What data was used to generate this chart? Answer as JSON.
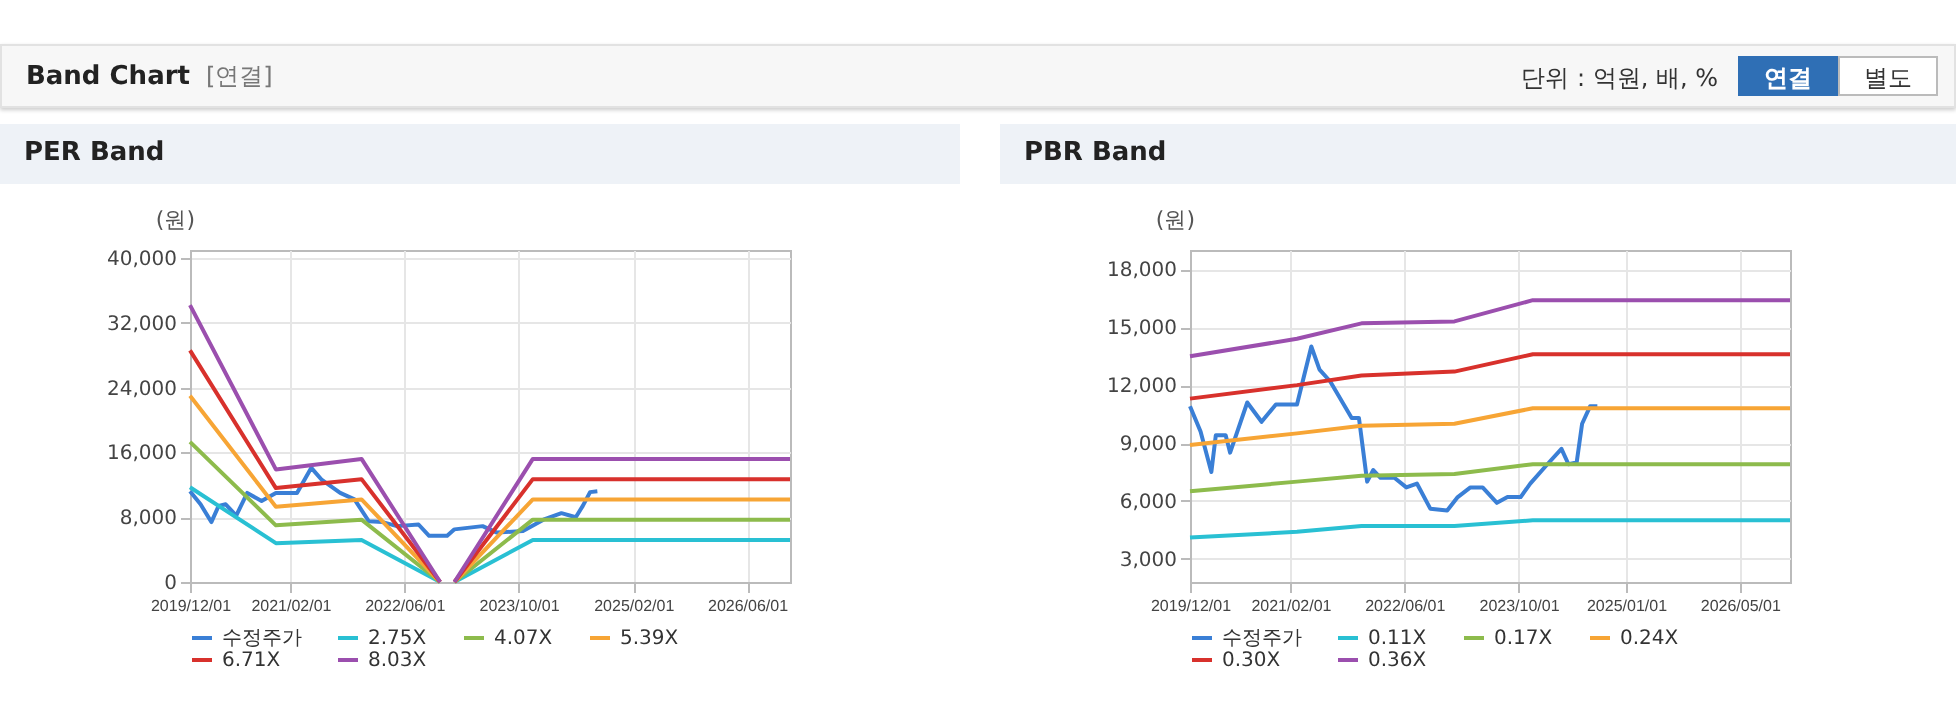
{
  "chart_data": [
    {
      "type": "other",
      "title": "Band Chart",
      "annotations": [
        "[연결]",
        "단위 : 억원, 배, %",
        "연결",
        "별도"
      ]
    },
    {
      "type": "line",
      "title": "PER Band",
      "ylabel": "(원)",
      "xlim": [
        "2019-12-01",
        "2026-12-01"
      ],
      "ylim": [
        0,
        41000
      ],
      "xticks": [
        {
          "value": "2019-12-01",
          "label": "2019/12/01"
        },
        {
          "value": "2021-02-01",
          "label": "2021/02/01"
        },
        {
          "value": "2022-06-01",
          "label": "2022/06/01"
        },
        {
          "value": "2023-10-01",
          "label": "2023/10/01"
        },
        {
          "value": "2025-02-01",
          "label": "2025/02/01"
        },
        {
          "value": "2026-06-01",
          "label": "2026/06/01"
        }
      ],
      "yticks": [
        0,
        {
          "value": 8000,
          "label": "8,000"
        },
        {
          "value": 16000,
          "label": "16,000"
        },
        {
          "value": 24000,
          "label": "24,000"
        },
        {
          "value": 32000,
          "label": "32,000"
        },
        {
          "value": 40000,
          "label": "40,000"
        }
      ],
      "grid": true,
      "legend": "bottom",
      "marker": "none",
      "line_style": "solid",
      "x": [
        "2019-12-01",
        "2020-12-01",
        "2021-12-01",
        "2022-11-01",
        "2022-12-01",
        "2023-01-01",
        "2023-12-01",
        "2026-12-01"
      ],
      "series": [
        {
          "name": "수정주가",
          "color": "#3a7fd6",
          "x": [
            "2019-12-01",
            "2020-01-15",
            "2020-03-01",
            "2020-04-01",
            "2020-05-01",
            "2020-06-15",
            "2020-08-01",
            "2020-10-01",
            "2020-12-01",
            "2021-03-01",
            "2021-05-01",
            "2021-06-15",
            "2021-09-01",
            "2021-11-01",
            "2022-01-01",
            "2022-03-01",
            "2022-05-01",
            "2022-08-01",
            "2022-09-15",
            "2022-12-01",
            "2023-01-01",
            "2023-05-01",
            "2023-07-01",
            "2023-10-20",
            "2024-01-15",
            "2024-04-01",
            "2024-06-01",
            "2024-07-01",
            "2024-08-01",
            "2024-09-01"
          ],
          "values": [
            11200,
            9600,
            7400,
            9400,
            9600,
            8200,
            11000,
            10000,
            11000,
            11000,
            14100,
            12600,
            11000,
            10200,
            7500,
            7400,
            6900,
            7100,
            5700,
            5700,
            6500,
            6900,
            6100,
            6300,
            7700,
            8500,
            8000,
            9400,
            11100,
            11200
          ]
        },
        {
          "name": "2.75X",
          "color": "#29c0d3",
          "values": [
            11700,
            4800,
            5200,
            0,
            null,
            0,
            5200,
            5200
          ]
        },
        {
          "name": "4.07X",
          "color": "#8dbb4c",
          "values": [
            17300,
            7000,
            7700,
            0,
            null,
            0,
            7700,
            7700
          ]
        },
        {
          "name": "5.39X",
          "color": "#f7a535",
          "values": [
            23000,
            9300,
            10200,
            0,
            null,
            0,
            10200,
            10200
          ]
        },
        {
          "name": "6.71X",
          "color": "#d8312c",
          "values": [
            28600,
            11600,
            12700,
            0,
            null,
            0,
            12700,
            12700
          ]
        },
        {
          "name": "8.03X",
          "color": "#9b4fae",
          "values": [
            34200,
            13900,
            15200,
            0,
            null,
            0,
            15200,
            15200
          ]
        }
      ]
    },
    {
      "type": "line",
      "title": "PBR Band",
      "ylabel": "(원)",
      "xlim": [
        "2019-12-01",
        "2026-12-01"
      ],
      "ylim": [
        1800,
        19000
      ],
      "xticks": [
        {
          "value": "2019-12-01",
          "label": "2019/12/01"
        },
        {
          "value": "2021-02-01",
          "label": "2021/02/01"
        },
        {
          "value": "2022-06-01",
          "label": "2022/06/01"
        },
        {
          "value": "2023-10-01",
          "label": "2023/10/01"
        },
        {
          "value": "2025-01-01",
          "label": "2025/01/01"
        },
        {
          "value": "2026-05-01",
          "label": "2026/05/01"
        }
      ],
      "yticks": [
        {
          "value": 3000,
          "label": "3,000"
        },
        {
          "value": 6000,
          "label": "6,000"
        },
        {
          "value": 9000,
          "label": "9,000"
        },
        {
          "value": 12000,
          "label": "12,000"
        },
        {
          "value": 15000,
          "label": "15,000"
        },
        {
          "value": 18000,
          "label": "18,000"
        }
      ],
      "grid": true,
      "legend": "bottom",
      "marker": "none",
      "line_style": "solid",
      "x": [
        "2019-12-01",
        "2021-03-01",
        "2021-12-01",
        "2023-01-01",
        "2023-12-01",
        "2026-12-01"
      ],
      "series": [
        {
          "name": "수정주가",
          "color": "#3a7fd6",
          "x": [
            "2019-12-01",
            "2020-01-15",
            "2020-03-01",
            "2020-03-20",
            "2020-05-01",
            "2020-05-20",
            "2020-08-01",
            "2020-10-01",
            "2020-12-01",
            "2021-03-01",
            "2021-05-01",
            "2021-06-05",
            "2021-07-20",
            "2021-10-20",
            "2021-11-20",
            "2021-12-25",
            "2022-01-20",
            "2022-02-20",
            "2022-04-20",
            "2022-06-10",
            "2022-07-25",
            "2022-09-20",
            "2022-12-01",
            "2023-01-15",
            "2023-03-10",
            "2023-05-01",
            "2023-07-01",
            "2023-08-15",
            "2023-10-10",
            "2023-11-20",
            "2024-02-01",
            "2024-04-01",
            "2024-05-01",
            "2024-06-05",
            "2024-06-28",
            "2024-08-01",
            "2024-09-01"
          ],
          "values": [
            10900,
            9600,
            7500,
            9400,
            9400,
            8500,
            11100,
            10100,
            11000,
            11000,
            14000,
            12800,
            12200,
            10300,
            10300,
            7000,
            7600,
            7200,
            7200,
            6700,
            6900,
            5600,
            5500,
            6200,
            6700,
            6700,
            5900,
            6200,
            6200,
            6900,
            7900,
            8700,
            7900,
            8000,
            10000,
            10900,
            10900
          ]
        },
        {
          "name": "0.11X",
          "color": "#29c0d3",
          "values": [
            4100,
            4400,
            4700,
            4700,
            5000,
            5000
          ]
        },
        {
          "name": "0.17X",
          "color": "#8dbb4c",
          "values": [
            6500,
            7000,
            7300,
            7400,
            7900,
            7900
          ]
        },
        {
          "name": "0.24X",
          "color": "#f7a535",
          "values": [
            8900,
            9500,
            9900,
            10000,
            10800,
            10800
          ]
        },
        {
          "name": "0.30X",
          "color": "#d8312c",
          "values": [
            11300,
            12000,
            12500,
            12700,
            13600,
            13600
          ]
        },
        {
          "name": "0.36X",
          "color": "#9b4fae",
          "values": [
            13500,
            14400,
            15200,
            15300,
            16400,
            16400
          ]
        }
      ]
    }
  ]
}
